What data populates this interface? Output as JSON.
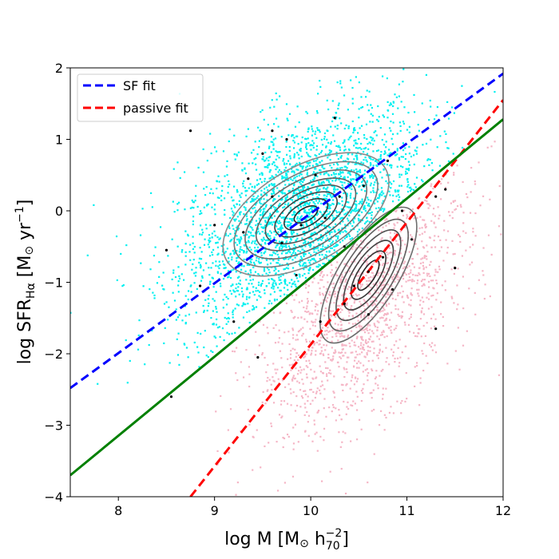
{
  "chart_data": {
    "type": "scatter",
    "title": "",
    "xlabel": "log M [M⊙ h70⁻²]",
    "xlabel_parts": {
      "main": "log M [M",
      "sun": "⊙",
      "h": " h",
      "sub": "70",
      "sup": "−2",
      "close": "]"
    },
    "ylabel": "log SFRHα [M⊙ yr⁻¹]",
    "ylabel_parts": {
      "main": "log SFR",
      "sub": "Hα",
      "bracket": " [M",
      "sun": "⊙",
      "yr": " yr",
      "sup": "−1",
      "close": "]"
    },
    "xlim": [
      7.5,
      12
    ],
    "ylim": [
      -4,
      2
    ],
    "xticks": [
      8,
      9,
      10,
      11,
      12
    ],
    "yticks": [
      -4,
      -3,
      -2,
      -1,
      0,
      1,
      2
    ],
    "xtick_labels": [
      "8",
      "9",
      "10",
      "11",
      "12"
    ],
    "ytick_labels": [
      "−4",
      "−3",
      "−2",
      "−1",
      "0",
      "1",
      "2"
    ],
    "legend_position": "upper-left",
    "series": [
      {
        "name": "star-forming galaxies",
        "kind": "scatter",
        "color": "#00f0f0",
        "cloud": {
          "center": [
            9.9,
            -0.1
          ],
          "spread": [
            0.75,
            0.7
          ],
          "n": 2600,
          "side": "above"
        }
      },
      {
        "name": "passive galaxies",
        "kind": "scatter",
        "color": "#f5b6c6",
        "cloud": {
          "center": [
            10.55,
            -1.3
          ],
          "spread": [
            0.55,
            0.75
          ],
          "n": 1500,
          "side": "below"
        }
      },
      {
        "name": "SF fit",
        "kind": "line",
        "color": "#0000ff",
        "dashed": true,
        "x": [
          7.5,
          12
        ],
        "y": [
          -2.48,
          1.92
        ],
        "legend": true
      },
      {
        "name": "passive fit",
        "kind": "line",
        "color": "#ff0000",
        "dashed": true,
        "x": [
          8.75,
          10.1,
          12
        ],
        "y": [
          -4.0,
          -1.7,
          1.55
        ],
        "legend": true
      },
      {
        "name": "separation line",
        "kind": "line",
        "color": "#008000",
        "dashed": false,
        "x": [
          7.5,
          12
        ],
        "y": [
          -3.7,
          1.28
        ],
        "legend": false
      },
      {
        "name": "black points",
        "kind": "scatter",
        "color": "#000000",
        "points": [
          [
            9.5,
            0.8
          ],
          [
            9.35,
            0.45
          ],
          [
            9.75,
            1.0
          ],
          [
            9.6,
            0.2
          ],
          [
            10.05,
            0.5
          ],
          [
            10.3,
            0.2
          ],
          [
            10.55,
            0.35
          ],
          [
            9.9,
            -0.2
          ],
          [
            10.15,
            -0.1
          ],
          [
            9.7,
            -0.45
          ],
          [
            9.3,
            -0.3
          ],
          [
            10.35,
            -0.5
          ],
          [
            10.6,
            -0.85
          ],
          [
            10.75,
            -0.65
          ],
          [
            10.45,
            -1.05
          ],
          [
            10.85,
            -1.1
          ],
          [
            10.35,
            -1.3
          ],
          [
            10.6,
            -1.45
          ],
          [
            11.05,
            -0.4
          ],
          [
            11.3,
            0.2
          ],
          [
            8.75,
            1.12
          ],
          [
            8.5,
            -0.55
          ],
          [
            8.55,
            -2.6
          ],
          [
            9.0,
            -0.2
          ],
          [
            9.6,
            1.12
          ],
          [
            10.8,
            0.7
          ],
          [
            11.3,
            -1.65
          ],
          [
            11.5,
            -0.8
          ],
          [
            11.4,
            0.3
          ],
          [
            10.25,
            1.3
          ],
          [
            9.2,
            -1.55
          ],
          [
            9.45,
            -2.05
          ],
          [
            10.95,
            0.0
          ],
          [
            10.1,
            -1.55
          ],
          [
            9.85,
            -0.9
          ],
          [
            8.85,
            -1.05
          ]
        ]
      }
    ],
    "contours": {
      "color": "#555555",
      "sets": [
        {
          "center": [
            9.95,
            -0.05
          ],
          "angle_deg": 30,
          "rx": [
            0.15,
            0.28,
            0.4,
            0.52,
            0.64,
            0.78,
            0.92,
            1.06
          ],
          "ry": [
            0.1,
            0.18,
            0.26,
            0.34,
            0.42,
            0.52,
            0.62,
            0.74
          ]
        },
        {
          "center": [
            10.6,
            -0.9
          ],
          "angle_deg": 58,
          "rx": [
            0.2,
            0.32,
            0.46,
            0.6,
            0.74,
            0.9
          ],
          "ry": [
            0.1,
            0.17,
            0.24,
            0.31,
            0.38,
            0.46
          ]
        }
      ]
    },
    "legend": [
      {
        "label": "SF fit",
        "color": "#0000ff"
      },
      {
        "label": "passive fit",
        "color": "#ff0000"
      }
    ]
  }
}
